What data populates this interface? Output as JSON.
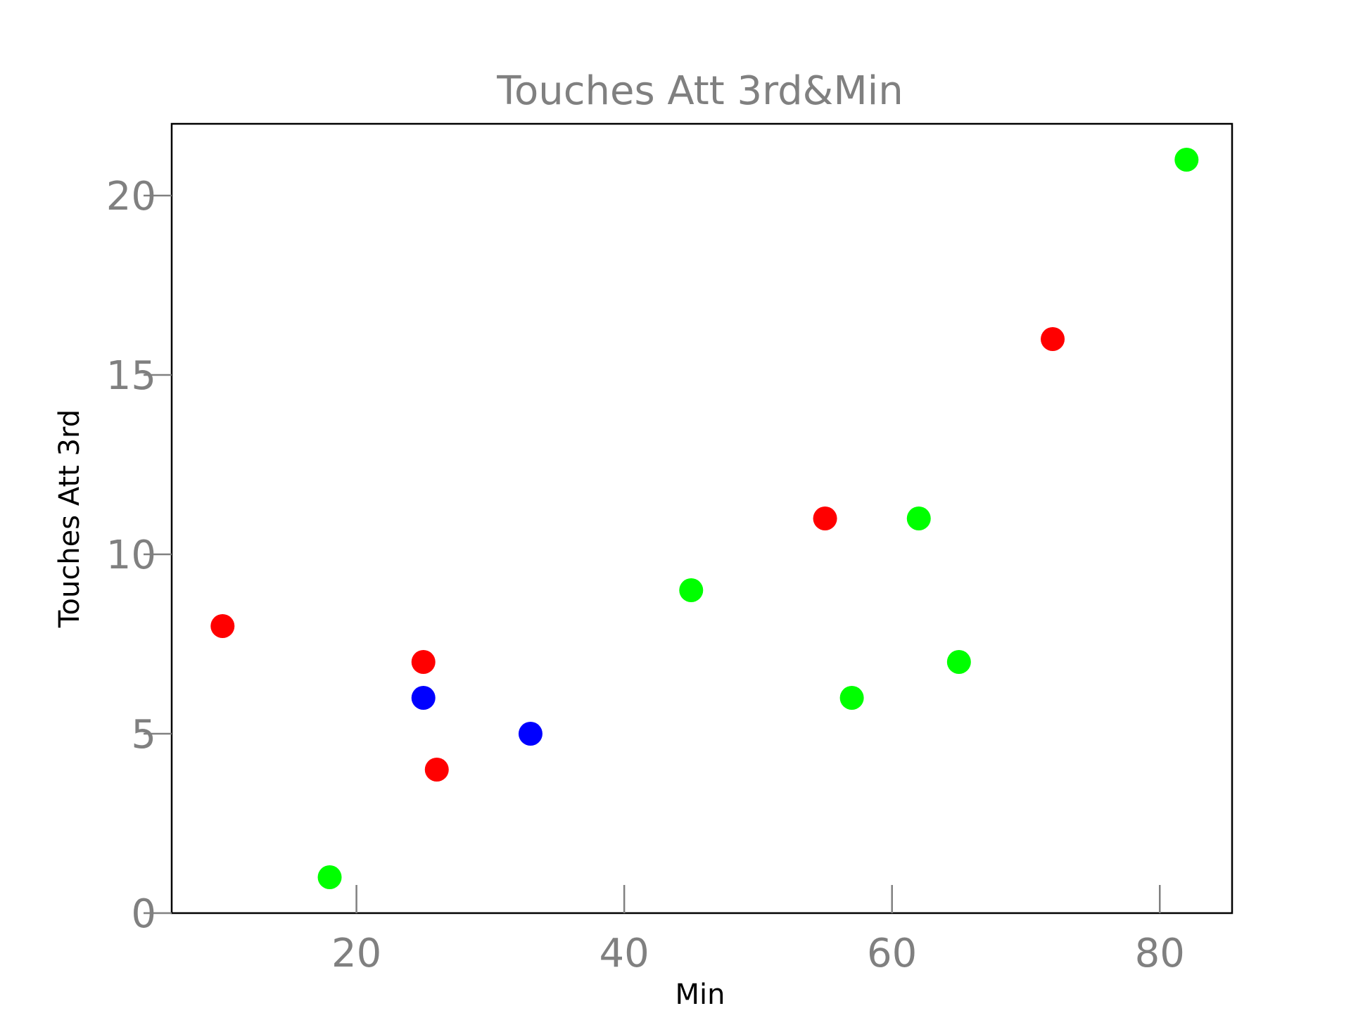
{
  "chart_data": {
    "type": "scatter",
    "title": "Touches Att 3rd&Min",
    "xlabel": "Min",
    "ylabel": "Touches Att 3rd",
    "xlim": [
      6.2,
      85.4
    ],
    "ylim": [
      0,
      22
    ],
    "xticks": [
      20,
      40,
      60,
      80
    ],
    "yticks": [
      0,
      5,
      10,
      15,
      20
    ],
    "grid": false,
    "points": [
      {
        "x": 10,
        "y": 8,
        "color": "#ff0000"
      },
      {
        "x": 25,
        "y": 7,
        "color": "#ff0000"
      },
      {
        "x": 26,
        "y": 4,
        "color": "#ff0000"
      },
      {
        "x": 55,
        "y": 11,
        "color": "#ff0000"
      },
      {
        "x": 72,
        "y": 16,
        "color": "#ff0000"
      },
      {
        "x": 25,
        "y": 6,
        "color": "#0000ff"
      },
      {
        "x": 33,
        "y": 5,
        "color": "#0000ff"
      },
      {
        "x": 18,
        "y": 1,
        "color": "#00ff00"
      },
      {
        "x": 45,
        "y": 9,
        "color": "#00ff00"
      },
      {
        "x": 57,
        "y": 6,
        "color": "#00ff00"
      },
      {
        "x": 62,
        "y": 11,
        "color": "#00ff00"
      },
      {
        "x": 65,
        "y": 7,
        "color": "#00ff00"
      },
      {
        "x": 82,
        "y": 21,
        "color": "#00ff00"
      }
    ]
  }
}
